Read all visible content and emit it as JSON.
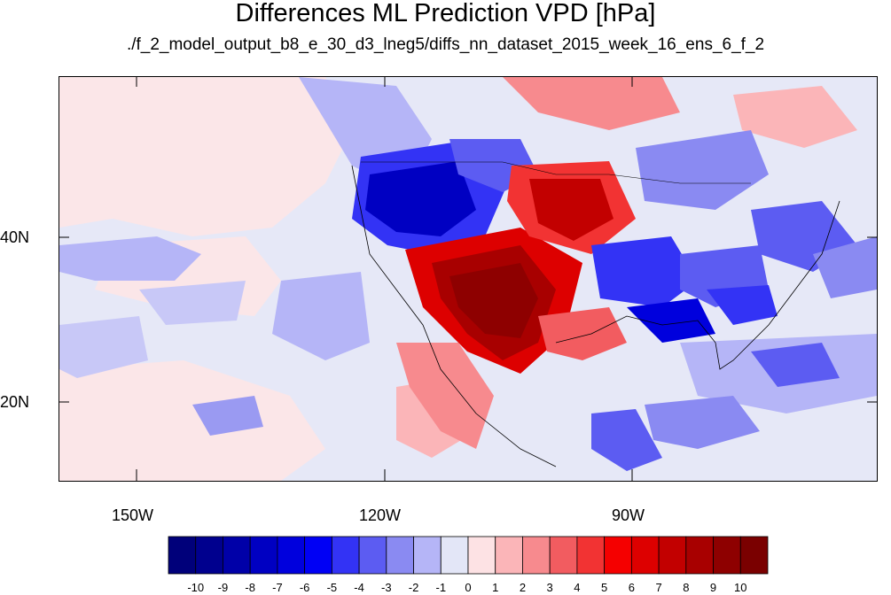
{
  "title": "Differences ML Prediction VPD [hPa]",
  "subtitle": "./f_2_model_output_b8_e_30_d3_lneg5/diffs_nn_dataset_2015_week_16_ens_6_f_2",
  "lat_labels": [
    "40N",
    "20N"
  ],
  "lon_labels": [
    "150W",
    "120W",
    "90W"
  ],
  "colorbar": {
    "labels": [
      "-10",
      "-9",
      "-8",
      "-7",
      "-6",
      "-5",
      "-4",
      "-3",
      "-2",
      "-1",
      "0",
      "1",
      "2",
      "3",
      "4",
      "5",
      "6",
      "7",
      "8",
      "9",
      "10"
    ],
    "colors": [
      "#00007a",
      "#00008e",
      "#0000a8",
      "#0000c2",
      "#0000dd",
      "#0000f5",
      "#3333f5",
      "#5c5cf2",
      "#8a8af2",
      "#b5b5f7",
      "#e3e6f7",
      "#fde2e4",
      "#fbb5b8",
      "#f78a8e",
      "#f25c60",
      "#f23333",
      "#f50000",
      "#dd0000",
      "#c20000",
      "#a80000",
      "#8e0000",
      "#7a0000"
    ]
  }
}
